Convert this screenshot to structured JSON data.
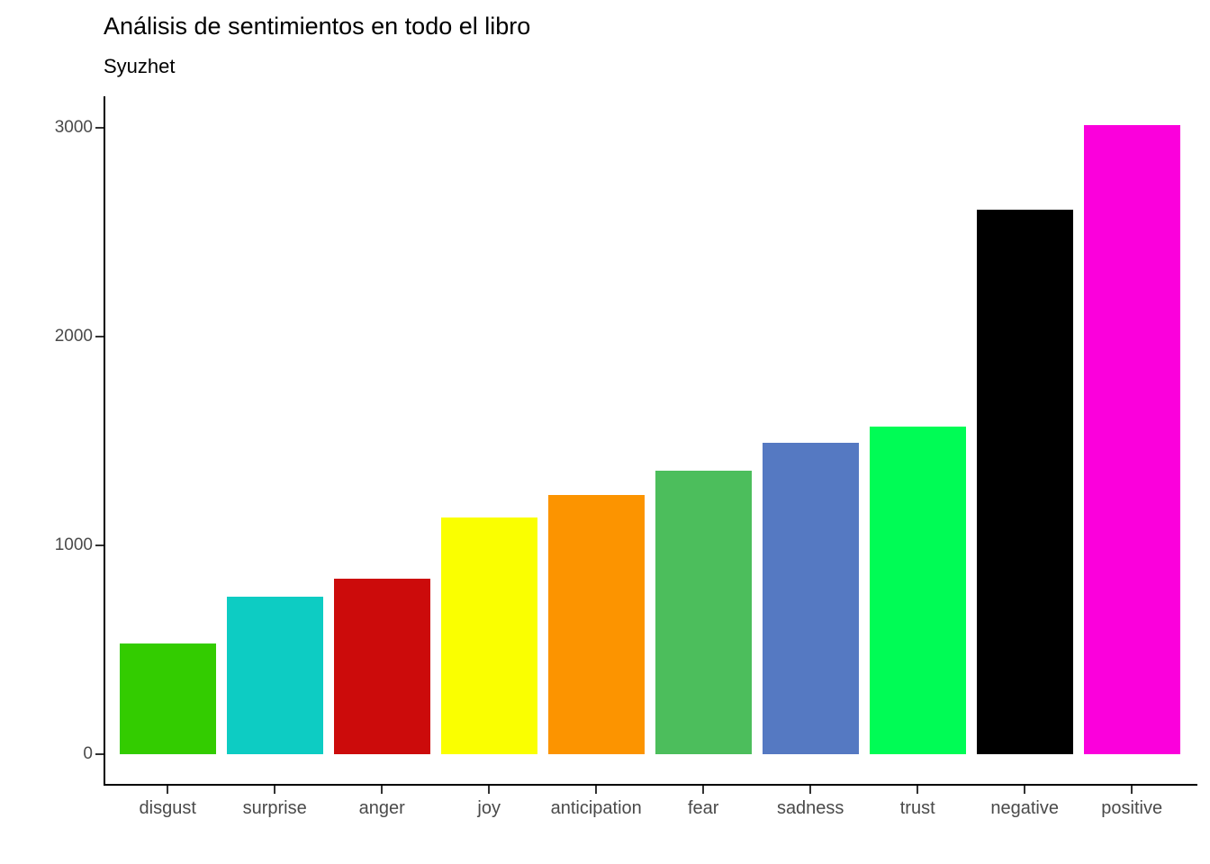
{
  "chart_data": {
    "type": "bar",
    "title": "Análisis de sentimientos en todo el libro",
    "subtitle": "Syuzhet",
    "categories": [
      "disgust",
      "surprise",
      "anger",
      "joy",
      "anticipation",
      "fear",
      "sadness",
      "trust",
      "negative",
      "positive"
    ],
    "values": [
      530,
      756,
      839,
      1134,
      1241,
      1359,
      1490,
      1568,
      2609,
      3013
    ],
    "bar_colors": [
      "#33CC00",
      "#0DCCC3",
      "#CC0B0B",
      "#FAFF00",
      "#FC9400",
      "#4CBE5C",
      "#5579C2",
      "#00FC55",
      "#000000",
      "#FB00DC"
    ],
    "xlabel": "",
    "ylabel": "",
    "ylim": [
      0,
      3000
    ],
    "yticks": [
      0,
      1000,
      2000,
      3000
    ],
    "grid": false,
    "legend": false,
    "background_color": "#FFFFFF",
    "axis_line_color": "#000000",
    "tick_color": "#333333",
    "tick_label_color": "#4A4A4A",
    "title_color": "#000000"
  }
}
